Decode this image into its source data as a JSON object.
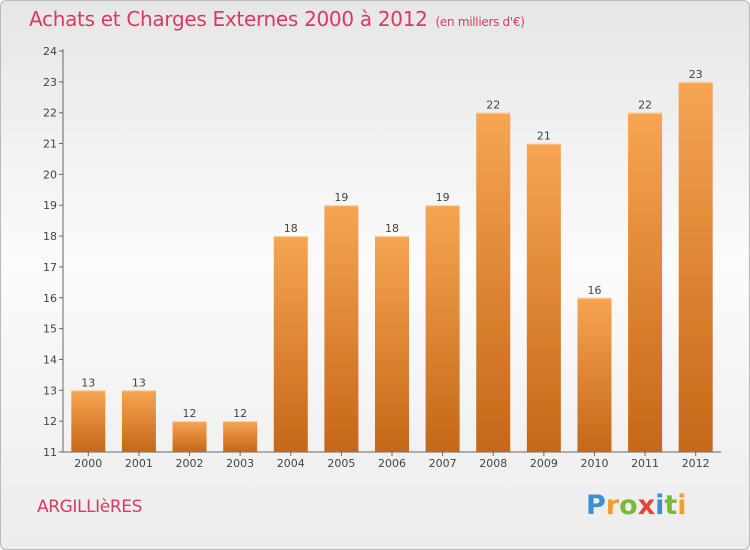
{
  "header": {
    "title": "Achats et Charges Externes 2000 à 2012",
    "subtitle": "(en milliers d'€)"
  },
  "footer": {
    "city": "ARGILLIèRES",
    "brand_letters": [
      {
        "ch": "P",
        "color": "#3e8fd0"
      },
      {
        "ch": "r",
        "color": "#f0a12c"
      },
      {
        "ch": "o",
        "color": "#7cb83c"
      },
      {
        "ch": "x",
        "color": "#e2443a"
      },
      {
        "ch": "i",
        "color": "#3e8fd0"
      },
      {
        "ch": "t",
        "color": "#7cb83c"
      },
      {
        "ch": "i",
        "color": "#f0a12c"
      }
    ]
  },
  "chart_data": {
    "type": "bar",
    "categories": [
      "2000",
      "2001",
      "2002",
      "2003",
      "2004",
      "2005",
      "2006",
      "2007",
      "2008",
      "2009",
      "2010",
      "2011",
      "2012"
    ],
    "values": [
      13,
      13,
      12,
      12,
      18,
      19,
      18,
      19,
      22,
      21,
      16,
      22,
      23
    ],
    "data_labels": [
      "13",
      "13",
      "12",
      "12",
      "18",
      "19",
      "18",
      "19",
      "22",
      "21",
      "16",
      "22",
      "23"
    ],
    "yticks": [
      "11",
      "12",
      "13",
      "14",
      "15",
      "16",
      "17",
      "18",
      "19",
      "20",
      "21",
      "22",
      "23",
      "24"
    ],
    "ylim": [
      11,
      24
    ],
    "grid": false,
    "legend": "none",
    "colors": {
      "bar_light": "#f6a552",
      "bar_dark": "#c56718",
      "axis": "#666666",
      "text": "#444444"
    }
  }
}
